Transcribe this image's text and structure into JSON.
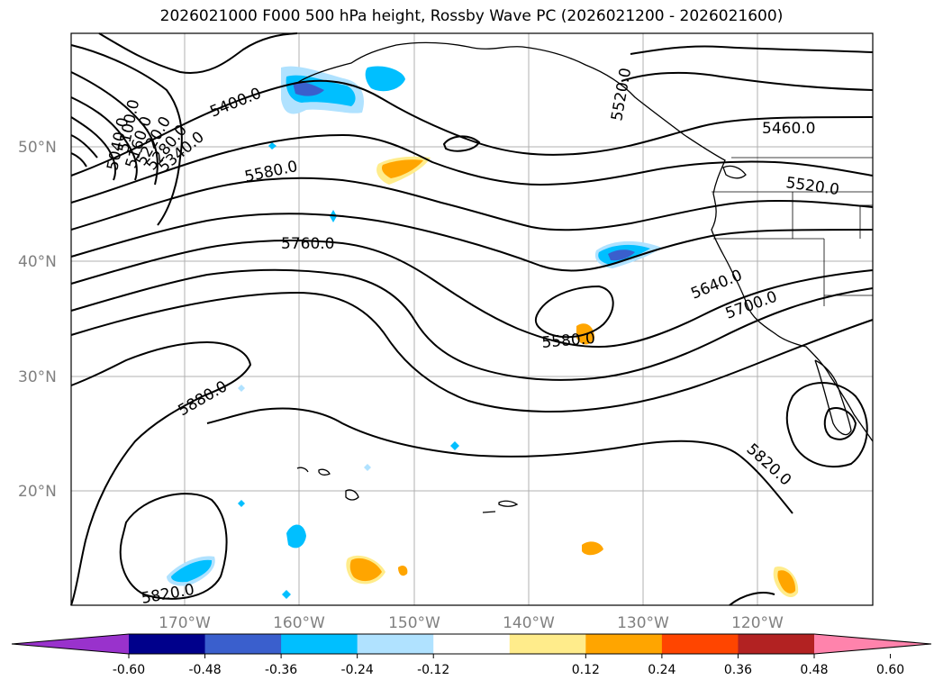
{
  "title": "2026021000 F000 500 hPa height, Rossby Wave PC (2026021200 - 2026021600)",
  "map": {
    "projection": "PlateCarree",
    "lon_range": [
      180,
      -110
    ],
    "lat_range": [
      10,
      60
    ],
    "gridlines": true,
    "coastlines": true,
    "state_borders": true
  },
  "lat_labels": [
    "50°N",
    "40°N",
    "30°N",
    "20°N"
  ],
  "lon_labels": [
    "170°W",
    "160°W",
    "150°W",
    "140°W",
    "130°W",
    "120°W"
  ],
  "contour_labels": {
    "c5400": "5400.0",
    "c5580_north": "5580.0",
    "c5760": "5760.0",
    "c5880": "5880.0",
    "c5820_sw": "5820.0",
    "c5580_low": "5580.0",
    "c5640": "5640.0",
    "c5700": "5700.0",
    "c5820_e": "5820.0",
    "c5460": "5460.0",
    "c5520": "5520.0",
    "c5040": "5040.0",
    "c5100": "5100.0",
    "c5160": "5160.0",
    "c5220": "5220.0",
    "c5280": "5280.0",
    "c5340": "5340.0"
  },
  "colorbar": {
    "ticks": [
      "-0.60",
      "-0.48",
      "-0.36",
      "-0.24",
      "-0.12",
      "0.12",
      "0.24",
      "0.36",
      "0.48",
      "0.60"
    ],
    "colors": [
      "#9932cc",
      "#00008b",
      "#3a5fcd",
      "#00bfff",
      "#b0e2ff",
      "#ffffff",
      "#ffec8b",
      "#ffa500",
      "#ff4500",
      "#b22222",
      "#ff83ac"
    ],
    "extend": "both"
  }
}
